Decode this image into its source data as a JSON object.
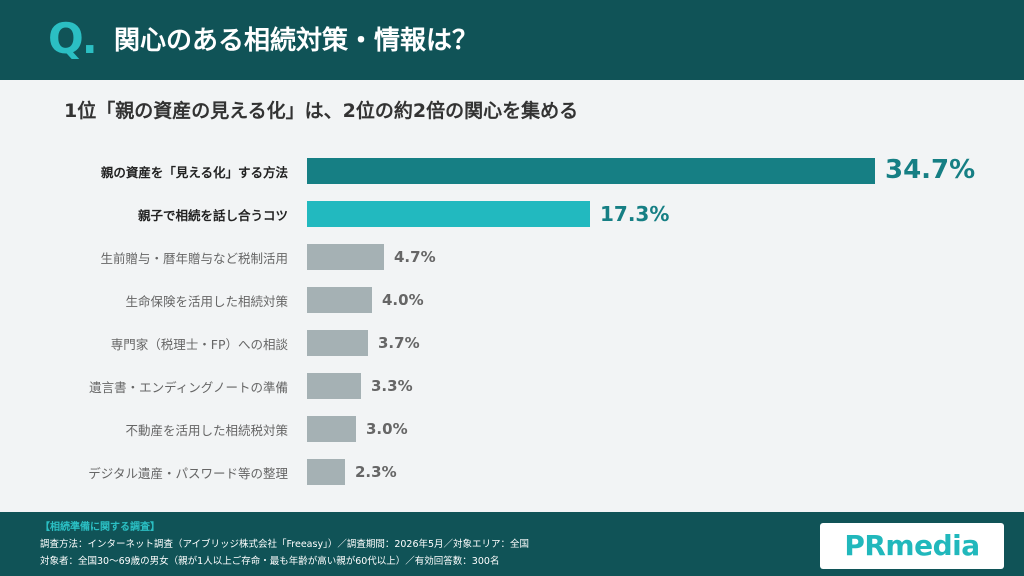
{
  "header": {
    "q_mark": "Q.",
    "title": "関心のある相続対策・情報は？"
  },
  "subtitle": "1位「親の資産の見える化」は、2位の約2倍の関心を集める",
  "chart_data": {
    "type": "bar",
    "orientation": "horizontal",
    "title": "関心のある相続対策・情報は？",
    "categories": [
      "親の資産を「見える化」する方法",
      "親子で相続を話し合うコツ",
      "生前贈与・暦年贈与など税制活用",
      "生命保険を活用した相続対策",
      "専門家（税理士・FP）への相談",
      "遺言書・エンディングノートの準備",
      "不動産を活用した相続税対策",
      "デジタル遺産・パスワード等の整理"
    ],
    "values": [
      34.7,
      17.3,
      4.7,
      4.0,
      3.7,
      3.3,
      3.0,
      2.3
    ],
    "value_labels": [
      "34.7%",
      "17.3%",
      "4.7%",
      "4.0%",
      "3.7%",
      "3.3%",
      "3.0%",
      "2.3%"
    ],
    "unit": "%",
    "colors": {
      "first": "#167f84",
      "second": "#22b9bf",
      "rest": "#a5b1b4"
    },
    "grid": false,
    "legend": "none"
  },
  "footer": {
    "title": "【相続準備に関する調査】",
    "line1": "調査方法：インターネット調査（アイブリッジ株式会社「Freeasy」）／調査期間：2026年5月／対象エリア：全国",
    "line2": "対象者：全国30〜69歳の男女（親が1人以上ご存命・最も年齢が高い親が60代以上）／有効回答数：300名"
  },
  "logo": {
    "text": "PRmedia"
  }
}
